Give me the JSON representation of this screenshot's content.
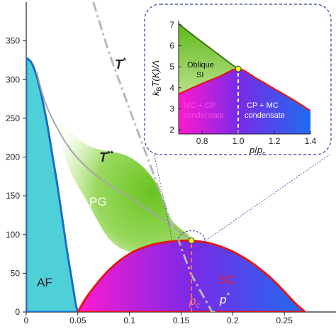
{
  "chart_data": {
    "type": "line",
    "title": "",
    "xlabel": "",
    "ylabel": "",
    "xlim": [
      0,
      0.3
    ],
    "ylim": [
      0,
      400
    ],
    "x_ticks": [
      "0",
      "0.05",
      "0.1",
      "0.15",
      "0.2",
      "0.25"
    ],
    "y_ticks": [
      "0",
      "50",
      "100",
      "150",
      "200",
      "250",
      "300",
      "350"
    ],
    "x_tick_values": [
      0,
      0.05,
      0.1,
      0.15,
      0.2,
      0.25
    ],
    "y_tick_values": [
      0,
      50,
      100,
      150,
      200,
      250,
      300,
      350
    ],
    "regions": {
      "af": "AF",
      "pg": "PG",
      "sc": "SC"
    },
    "curve_labels": {
      "t_star": "T",
      "t_star_sup": "*",
      "t_dstar": "T",
      "t_dstar_sup": "**",
      "pc": "p",
      "pc_sub": "c",
      "pstar": "p",
      "pstar_sup": "*"
    },
    "series": [
      {
        "key": "af",
        "x": [
          0,
          0.005,
          0.01,
          0.015,
          0.02,
          0.025,
          0.03,
          0.035,
          0.04,
          0.045,
          0.048,
          0.05
        ],
        "values": [
          328,
          322,
          305,
          278,
          245,
          205,
          165,
          120,
          75,
          35,
          10,
          0
        ]
      },
      {
        "key": "sc",
        "x": [
          0.05,
          0.06,
          0.08,
          0.1,
          0.12,
          0.14,
          0.16,
          0.18,
          0.2,
          0.22,
          0.24,
          0.26,
          0.27
        ],
        "values": [
          0,
          22,
          54,
          75,
          86,
          91,
          92,
          88,
          78,
          62,
          40,
          12,
          0
        ]
      },
      {
        "key": "t_star",
        "x": [
          0.065,
          0.08,
          0.1,
          0.12,
          0.14,
          0.16,
          0.18,
          0.186
        ],
        "values": [
          400,
          335,
          262,
          190,
          118,
          48,
          0,
          0
        ]
      },
      {
        "key": "t_dstar",
        "x": [
          0.01,
          0.02,
          0.04,
          0.06,
          0.08,
          0.1,
          0.12,
          0.14,
          0.16
        ],
        "values": [
          310,
          265,
          215,
          185,
          165,
          148,
          130,
          112,
          92
        ]
      },
      {
        "key": "pc",
        "x": [
          0.16,
          0.16
        ],
        "values": [
          0,
          92
        ]
      }
    ],
    "critical_point": {
      "x": 0.16,
      "y": 92
    },
    "colors": {
      "af": "#4fd0d8",
      "af_edge": "#1a6fc4",
      "pg": "#6cc61e",
      "sc_left": "#ff1ad0",
      "sc_mid": "#7a2ae6",
      "sc_right": "#1f6cf0",
      "sc_edge": "#e01818",
      "t_star": "#b8b8b8",
      "t_dstar": "#a6a6a6",
      "pc_line": "#ff6a6a",
      "point": "#ffff00"
    },
    "inset": {
      "type": "line",
      "xlim": [
        0.67,
        1.4
      ],
      "ylim": [
        1.8,
        7.2
      ],
      "x_ticks": [
        "0.8",
        "1.0",
        "1.2",
        "1.4"
      ],
      "y_ticks": [
        "2",
        "3",
        "4",
        "5",
        "6",
        "7"
      ],
      "x_tick_values": [
        0.8,
        1.0,
        1.2,
        1.4
      ],
      "y_tick_values": [
        2,
        3,
        4,
        5,
        6,
        7
      ],
      "xlabel_main": "p",
      "xlabel_sep": "/",
      "xlabel_sub_base": "p",
      "xlabel_sub": "c",
      "ylabel_prefix": "k",
      "ylabel_prefix_sub": "B",
      "ylabel_main": "T(K)/Λ",
      "regions": {
        "oblique": "Oblique",
        "si": "SI",
        "mc_cp_1": "MC + CP",
        "mc_cp_2": "condensate",
        "cp_mc_1": "CP + MC",
        "cp_mc_2": "condensate"
      },
      "series": [
        {
          "key": "upper_boundary",
          "x": [
            0.67,
            0.75,
            0.85,
            0.95,
            1.0
          ],
          "values": [
            7.05,
            6.5,
            5.85,
            5.2,
            4.9
          ]
        },
        {
          "key": "sc_boundary",
          "x": [
            0.67,
            0.8,
            0.9,
            1.0,
            1.1,
            1.2,
            1.3,
            1.4
          ],
          "values": [
            3.7,
            4.2,
            4.55,
            4.9,
            4.45,
            3.95,
            3.45,
            2.9
          ]
        },
        {
          "key": "divider",
          "x": [
            1.0,
            1.0
          ],
          "values": [
            1.8,
            4.9
          ]
        }
      ],
      "critical_point": {
        "x": 1.0,
        "y": 4.9
      }
    }
  }
}
